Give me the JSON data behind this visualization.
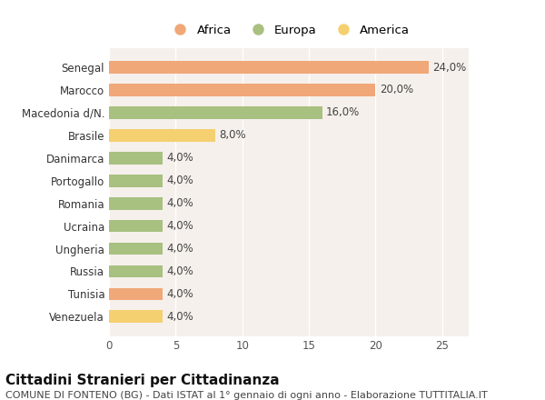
{
  "categories": [
    "Venezuela",
    "Tunisia",
    "Russia",
    "Ungheria",
    "Ucraina",
    "Romania",
    "Portogallo",
    "Danimarca",
    "Brasile",
    "Macedonia d/N.",
    "Marocco",
    "Senegal"
  ],
  "values": [
    4.0,
    4.0,
    4.0,
    4.0,
    4.0,
    4.0,
    4.0,
    4.0,
    8.0,
    16.0,
    20.0,
    24.0
  ],
  "colors": [
    "#f5d070",
    "#f0a878",
    "#a8c080",
    "#a8c080",
    "#a8c080",
    "#a8c080",
    "#a8c080",
    "#a8c080",
    "#f5d070",
    "#a8c080",
    "#f0a878",
    "#f0a878"
  ],
  "legend": [
    {
      "label": "Africa",
      "color": "#f0a878"
    },
    {
      "label": "Europa",
      "color": "#a8c080"
    },
    {
      "label": "America",
      "color": "#f5d070"
    }
  ],
  "title": "Cittadini Stranieri per Cittadinanza",
  "subtitle": "COMUNE DI FONTENO (BG) - Dati ISTAT al 1° gennaio di ogni anno - Elaborazione TUTTITALIA.IT",
  "xlim": [
    0,
    27
  ],
  "xticks": [
    0,
    5,
    10,
    15,
    20,
    25
  ],
  "figure_bg": "#ffffff",
  "axes_bg": "#f5f0eb",
  "grid_color": "#ffffff",
  "bar_height": 0.55,
  "title_fontsize": 11,
  "subtitle_fontsize": 8,
  "label_fontsize": 8.5,
  "tick_fontsize": 8.5,
  "legend_fontsize": 9.5
}
